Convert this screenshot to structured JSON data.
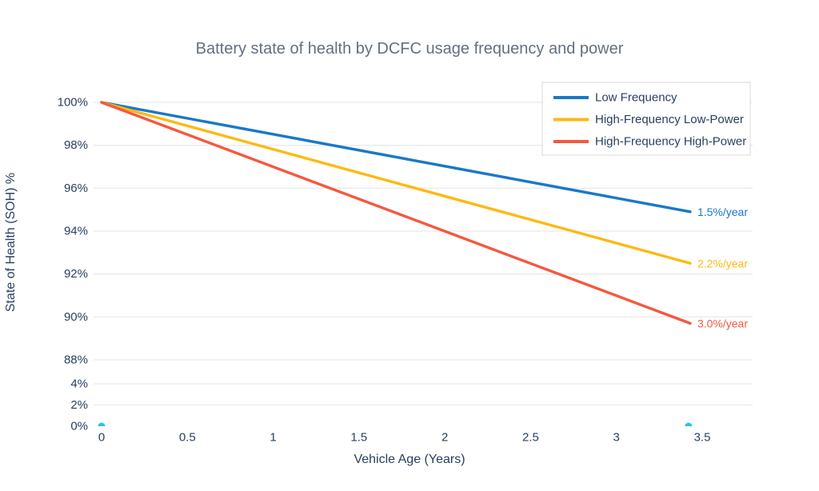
{
  "chart_data": {
    "type": "line",
    "title": "Battery state of health by DCFC usage frequency and power",
    "xlabel": "Vehicle Age (Years)",
    "ylabel": "State of Health (SOH) %",
    "x_ticks": [
      "0",
      "0.5",
      "1",
      "1.5",
      "2",
      "2.5",
      "3",
      "3.5"
    ],
    "x_tick_values": [
      0,
      0.5,
      1,
      1.5,
      2,
      2.5,
      3,
      3.5
    ],
    "y_ticks": [
      "100%",
      "98%",
      "96%",
      "94%",
      "92%",
      "90%",
      "88%",
      "4%",
      "2%",
      "0%"
    ],
    "y_tick_values": [
      100,
      98,
      96,
      94,
      92,
      90,
      88,
      4,
      2,
      0
    ],
    "axis_note": "y-axis compressed (scale break) between 4% and 88%",
    "x_end": 3.43,
    "series": [
      {
        "name": "Low Frequency",
        "color": "#1a78c9",
        "rate_pct_per_year": 1.5,
        "annotation": "1.5%/year",
        "x": [
          0,
          3.43
        ],
        "y": [
          100,
          94.9
        ]
      },
      {
        "name": "High-Frequency Low-Power",
        "color": "#fdb913",
        "rate_pct_per_year": 2.2,
        "annotation": "2.2%/year",
        "x": [
          0,
          3.43
        ],
        "y": [
          100,
          92.5
        ]
      },
      {
        "name": "High-Frequency High-Power",
        "color": "#f4593f",
        "rate_pct_per_year": 3.0,
        "annotation": "3.0%/year",
        "x": [
          0,
          3.43
        ],
        "y": [
          100,
          89.7
        ]
      }
    ],
    "baseline_markers": {
      "color": "#27c3ea",
      "points": [
        {
          "x": 0,
          "y": 0
        },
        {
          "x": 3.42,
          "y": 0
        }
      ]
    },
    "legend": {
      "position": "top-right",
      "items": [
        "Low Frequency",
        "High-Frequency Low-Power",
        "High-Frequency High-Power"
      ]
    },
    "colors": {
      "text": "#2a3f5f",
      "title": "#64707d",
      "grid": "#e9eaec",
      "background": "#ffffff",
      "legend_border": "#d9d9d9"
    }
  }
}
